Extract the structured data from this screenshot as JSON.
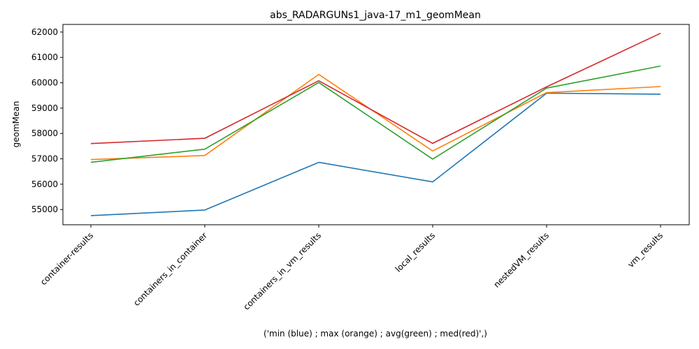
{
  "chart_data": {
    "type": "line",
    "title": "abs_RADARGUNs1_java-17_m1_geomMean",
    "xlabel": "('min (blue) ; max (orange) ; avg(green) ; med(red)',)",
    "ylabel": "geomMean",
    "categories": [
      "container-results",
      "containers_in_container",
      "containers_in_vm_results",
      "local_results",
      "nestedVM_results",
      "vm_results"
    ],
    "ylim": [
      54400,
      62300
    ],
    "yticks": [
      55000,
      56000,
      57000,
      58000,
      59000,
      60000,
      61000,
      62000
    ],
    "grid": false,
    "legend": "none",
    "series": [
      {
        "color": "#1f77b4",
        "values": [
          54760,
          54980,
          56860,
          56090,
          59590,
          59550
        ]
      },
      {
        "color": "#ff7f0e",
        "values": [
          56970,
          57130,
          60330,
          57310,
          59610,
          59850
        ]
      },
      {
        "color": "#2ca02c",
        "values": [
          56860,
          57380,
          60010,
          56990,
          59790,
          60660
        ]
      },
      {
        "color": "#d62728",
        "values": [
          57600,
          57810,
          60080,
          57610,
          59840,
          61950
        ]
      }
    ]
  }
}
